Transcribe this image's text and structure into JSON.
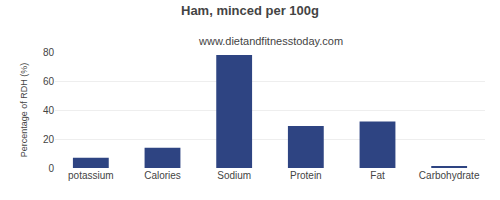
{
  "chart_data": {
    "type": "bar",
    "title": "Ham, minced per 100g",
    "subtitle": "www.dietandfitnesstoday.com",
    "ylabel": "Percentage of RDH (%)",
    "categories": [
      "potassium",
      "Calories",
      "Sodium",
      "Protein",
      "Fat",
      "Carbohydrate"
    ],
    "values": [
      7,
      14,
      78,
      29,
      32,
      1
    ],
    "color": "#2e4482",
    "ylim": [
      0,
      80
    ],
    "yticks": [
      0,
      20,
      40,
      60,
      80
    ],
    "grid": true
  }
}
